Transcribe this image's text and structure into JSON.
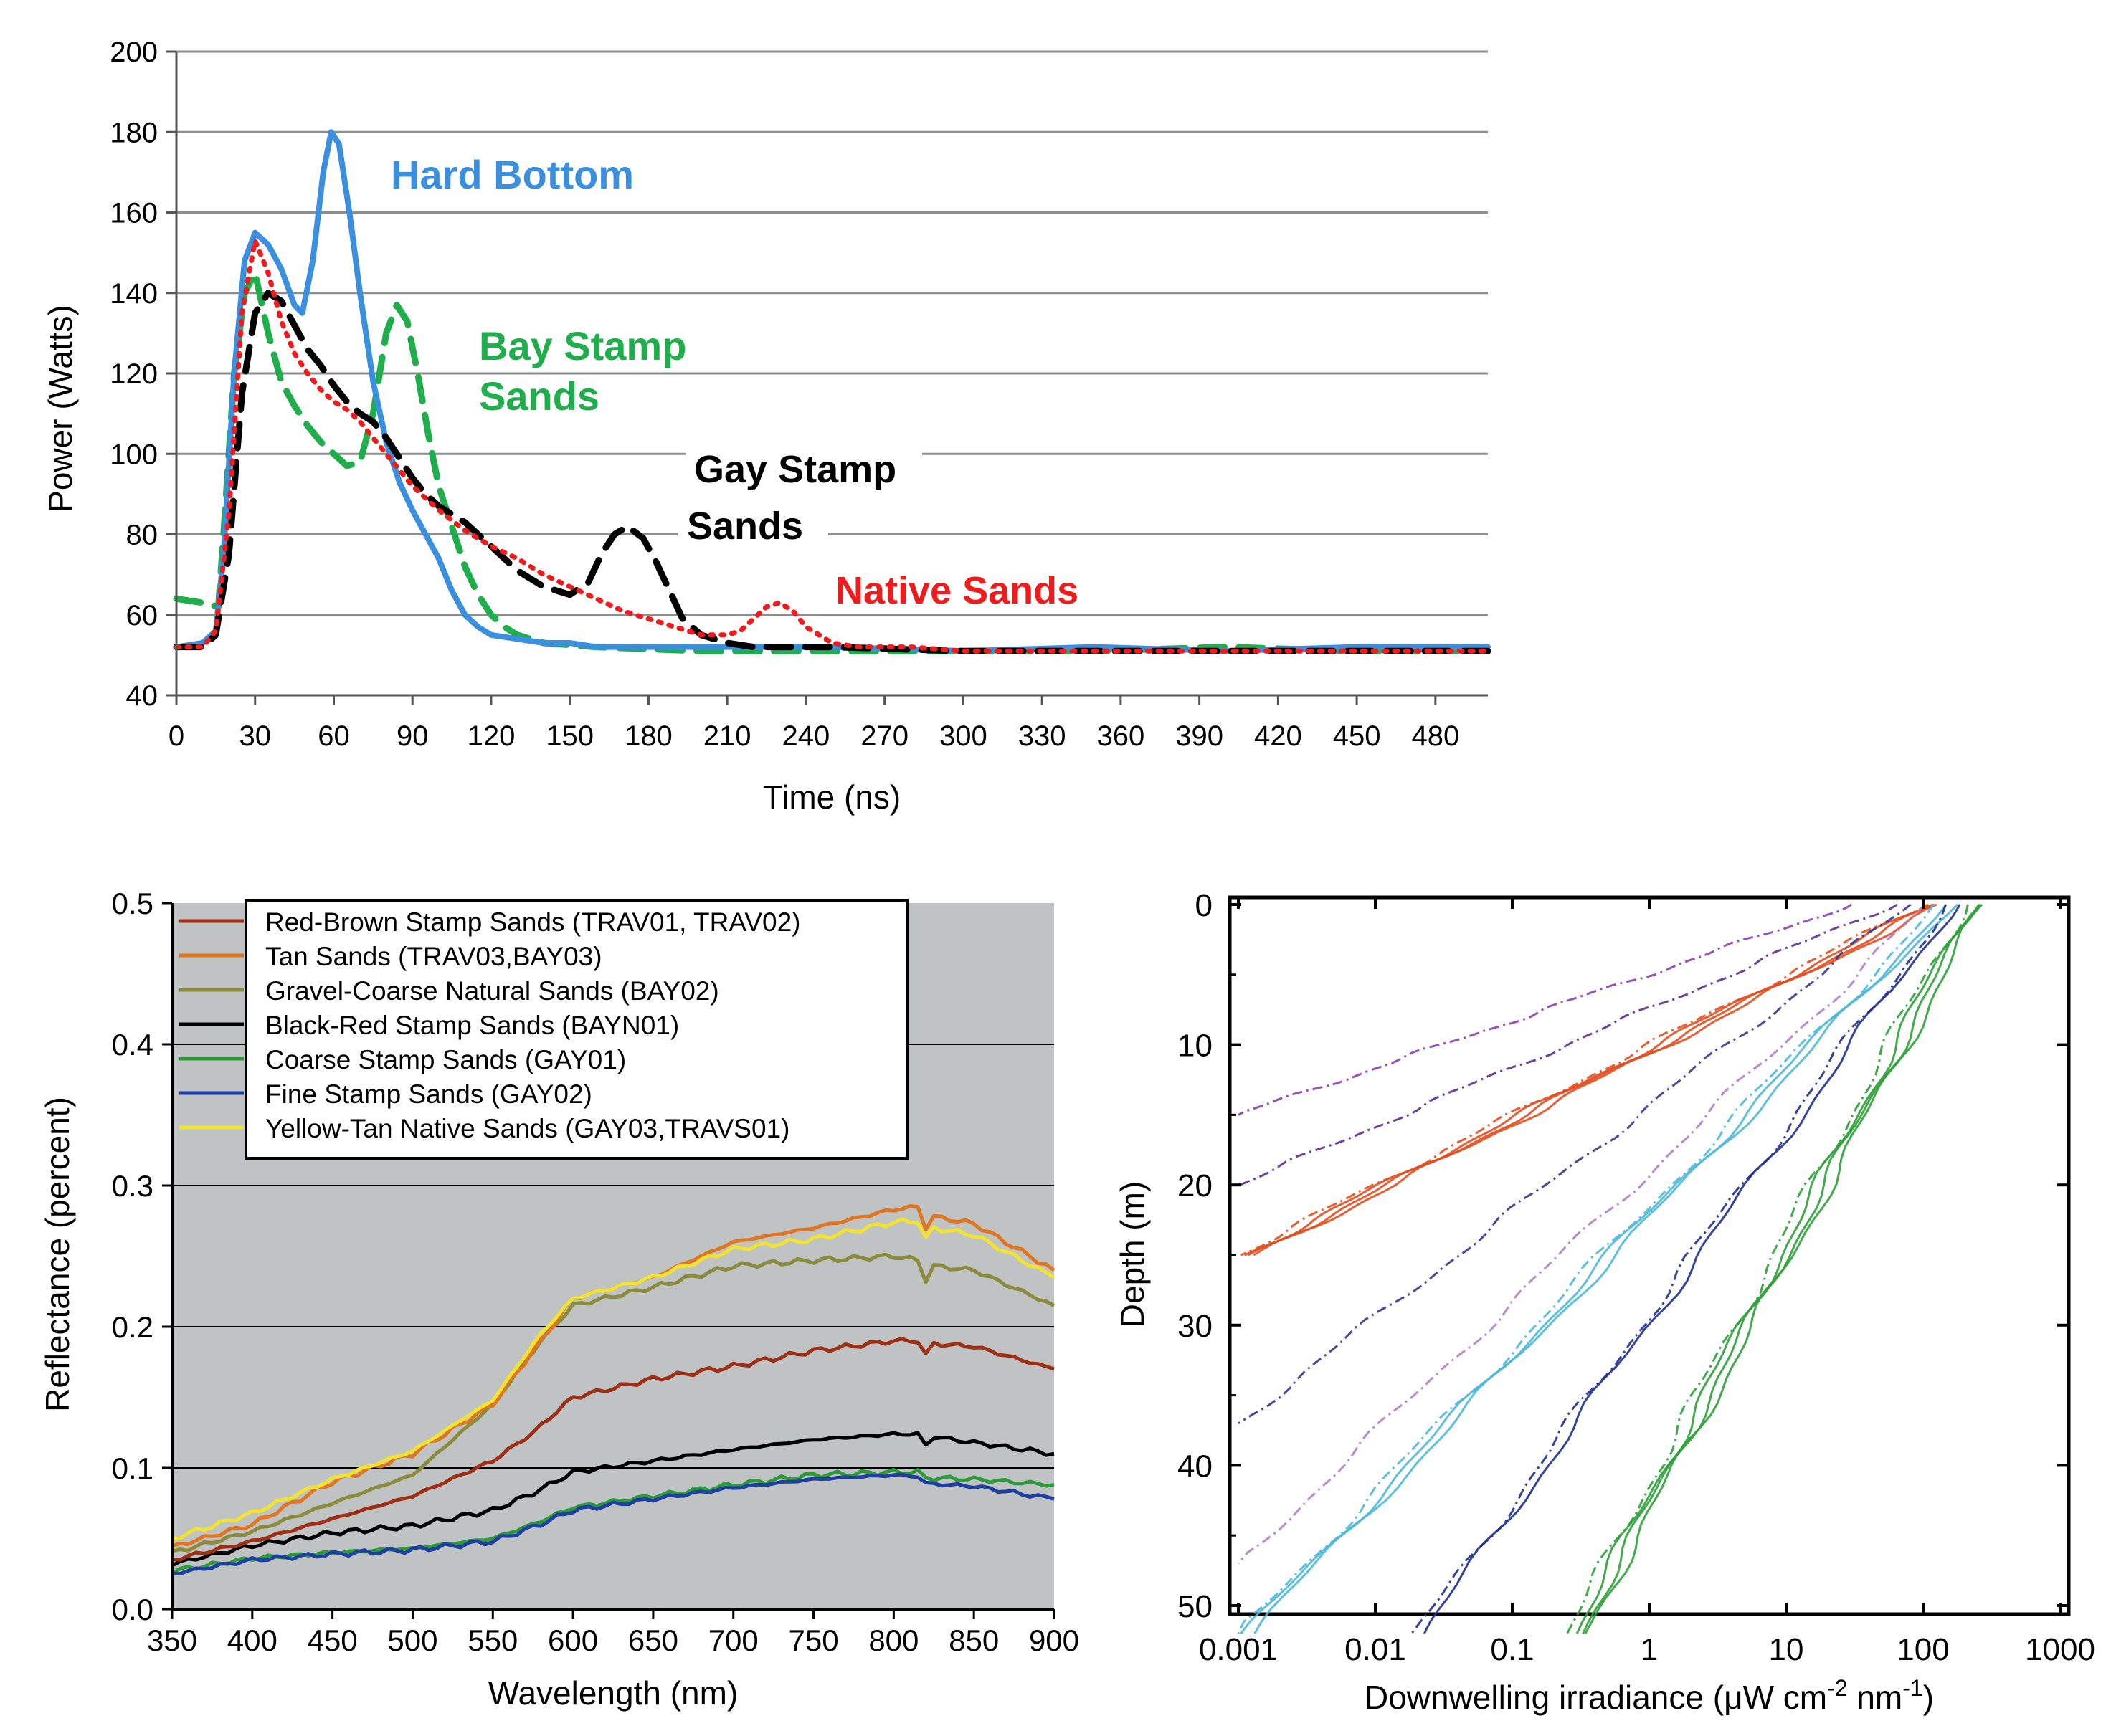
{
  "chart_data": [
    {
      "type": "line",
      "title": "",
      "xlabel": "Time (ns)",
      "ylabel": "Power (Watts)",
      "xlim": [
        0,
        500
      ],
      "ylim": [
        40,
        200
      ],
      "xticks": [
        0,
        30,
        60,
        90,
        120,
        150,
        180,
        210,
        240,
        270,
        300,
        330,
        360,
        390,
        420,
        450,
        480
      ],
      "yticks": [
        40,
        60,
        80,
        100,
        120,
        140,
        160,
        180,
        200
      ],
      "grid": "horizontal",
      "annotations": [
        {
          "lines": [
            "Hard Bottom"
          ],
          "color": "#3a8fdf"
        },
        {
          "lines": [
            "Bay Stamp",
            "Sands"
          ],
          "color": "#1fae4b"
        },
        {
          "lines": [
            "Gay Stamp",
            "Sands"
          ],
          "color": "#000000"
        },
        {
          "lines": [
            "Native Sands"
          ],
          "color": "#ee1c1c"
        }
      ],
      "series": [
        {
          "name": "Hard Bottom",
          "color": "#3a8fdf",
          "style": "solid",
          "x": [
            0,
            10,
            15,
            18,
            22,
            26,
            30,
            35,
            40,
            45,
            48,
            52,
            56,
            59,
            62,
            66,
            70,
            75,
            80,
            85,
            90,
            95,
            100,
            105,
            110,
            115,
            120,
            130,
            140,
            150,
            160,
            180,
            200,
            250,
            300,
            350,
            400,
            450,
            500
          ],
          "y": [
            52,
            53,
            56,
            75,
            120,
            148,
            155,
            152,
            146,
            137,
            135,
            148,
            170,
            180,
            177,
            160,
            140,
            118,
            103,
            93,
            86,
            80,
            74,
            66,
            60,
            57,
            55,
            54,
            53,
            53,
            52,
            52,
            52,
            52,
            51,
            52,
            51,
            52,
            52
          ]
        },
        {
          "name": "Bay Stamp Sands",
          "color": "#1fae4b",
          "style": "dashed",
          "x": [
            0,
            10,
            16,
            18,
            22,
            26,
            30,
            35,
            40,
            45,
            50,
            55,
            60,
            65,
            70,
            75,
            80,
            84,
            88,
            92,
            96,
            100,
            105,
            110,
            115,
            120,
            125,
            130,
            140,
            160,
            200,
            250,
            300,
            350,
            400,
            450,
            500
          ],
          "y": [
            64,
            63,
            62,
            80,
            120,
            140,
            145,
            130,
            118,
            112,
            107,
            103,
            100,
            97,
            98,
            110,
            130,
            137,
            133,
            120,
            105,
            92,
            82,
            72,
            65,
            60,
            57,
            55,
            53,
            52,
            51,
            51,
            51,
            51,
            52,
            51,
            51
          ]
        },
        {
          "name": "Gay Stamp Sands",
          "color": "#000000",
          "style": "dashed",
          "x": [
            0,
            10,
            15,
            20,
            25,
            30,
            35,
            40,
            45,
            50,
            55,
            60,
            65,
            70,
            75,
            80,
            85,
            90,
            95,
            100,
            110,
            120,
            130,
            140,
            150,
            157,
            162,
            167,
            172,
            178,
            183,
            188,
            193,
            200,
            210,
            220,
            250,
            300,
            350,
            400,
            450,
            500
          ],
          "y": [
            52,
            52,
            55,
            75,
            115,
            135,
            140,
            138,
            132,
            126,
            122,
            117,
            113,
            110,
            108,
            104,
            99,
            94,
            90,
            87,
            83,
            77,
            71,
            67,
            65,
            68,
            75,
            80,
            82,
            79,
            73,
            66,
            59,
            55,
            53,
            52,
            52,
            51,
            51,
            51,
            51,
            51
          ]
        },
        {
          "name": "Native Sands",
          "color": "#ee1c1c",
          "style": "dotted",
          "x": [
            0,
            10,
            15,
            20,
            25,
            30,
            35,
            40,
            45,
            50,
            55,
            60,
            65,
            70,
            80,
            90,
            100,
            110,
            120,
            130,
            140,
            150,
            160,
            170,
            180,
            190,
            200,
            210,
            215,
            220,
            225,
            230,
            235,
            240,
            245,
            250,
            260,
            280,
            300,
            350,
            400,
            450,
            500
          ],
          "y": [
            52,
            52,
            56,
            85,
            135,
            153,
            145,
            133,
            125,
            120,
            116,
            113,
            111,
            108,
            100,
            92,
            86,
            81,
            77,
            74,
            70,
            67,
            64,
            61,
            59,
            57,
            55,
            55,
            56,
            59,
            62,
            63,
            61,
            57,
            55,
            53,
            52,
            52,
            51,
            51,
            51,
            51,
            51
          ]
        }
      ]
    },
    {
      "type": "line",
      "title": "",
      "xlabel": "Wavelength (nm)",
      "ylabel": "Reflectance (percent)",
      "xlim": [
        350,
        900
      ],
      "ylim": [
        0,
        0.5
      ],
      "xticks": [
        350,
        400,
        450,
        500,
        550,
        600,
        650,
        700,
        750,
        800,
        850,
        900
      ],
      "yticks": [
        "0.0",
        "0.1",
        "0.2",
        "0.3",
        "0.4",
        "0.5"
      ],
      "background": "#bfc3c3",
      "legend": "top",
      "series": [
        {
          "name": "Red-Brown Stamp Sands (TRAV01, TRAV02)",
          "color": "#9e2e14",
          "x": [
            350,
            400,
            450,
            500,
            550,
            575,
            600,
            650,
            700,
            750,
            800,
            815,
            820,
            825,
            850,
            900
          ],
          "y": [
            0.035,
            0.048,
            0.064,
            0.08,
            0.105,
            0.125,
            0.15,
            0.163,
            0.172,
            0.183,
            0.19,
            0.19,
            0.18,
            0.188,
            0.186,
            0.17
          ]
        },
        {
          "name": "Tan Sands (TRAV03,BAY03)",
          "color": "#e0761f",
          "x": [
            350,
            400,
            450,
            500,
            550,
            580,
            600,
            650,
            700,
            750,
            800,
            815,
            820,
            825,
            850,
            900
          ],
          "y": [
            0.044,
            0.06,
            0.09,
            0.11,
            0.145,
            0.19,
            0.22,
            0.235,
            0.26,
            0.27,
            0.283,
            0.285,
            0.27,
            0.278,
            0.273,
            0.24
          ]
        },
        {
          "name": "Gravel-Coarse Natural Sands (BAY02)",
          "color": "#8a8c3c",
          "x": [
            350,
            400,
            450,
            500,
            550,
            580,
            600,
            650,
            700,
            750,
            800,
            815,
            820,
            825,
            850,
            900
          ],
          "y": [
            0.04,
            0.055,
            0.075,
            0.095,
            0.145,
            0.19,
            0.215,
            0.228,
            0.243,
            0.247,
            0.25,
            0.247,
            0.233,
            0.243,
            0.24,
            0.215
          ]
        },
        {
          "name": "Black-Red Stamp Sands (BAYN01)",
          "color": "#000000",
          "x": [
            350,
            400,
            450,
            500,
            550,
            575,
            600,
            650,
            700,
            750,
            800,
            815,
            820,
            825,
            850,
            900
          ],
          "y": [
            0.032,
            0.045,
            0.054,
            0.059,
            0.07,
            0.082,
            0.097,
            0.105,
            0.113,
            0.12,
            0.124,
            0.124,
            0.116,
            0.122,
            0.118,
            0.11
          ]
        },
        {
          "name": "Coarse Stamp Sands (GAY01)",
          "color": "#2d9a3a",
          "x": [
            350,
            400,
            450,
            500,
            550,
            575,
            600,
            650,
            700,
            750,
            800,
            815,
            820,
            850,
            900
          ],
          "y": [
            0.027,
            0.036,
            0.04,
            0.043,
            0.05,
            0.06,
            0.072,
            0.08,
            0.088,
            0.095,
            0.097,
            0.097,
            0.093,
            0.092,
            0.088
          ]
        },
        {
          "name": "Fine Stamp Sands (GAY02)",
          "color": "#1f3fa0",
          "x": [
            350,
            400,
            450,
            500,
            550,
            575,
            600,
            650,
            700,
            750,
            800,
            815,
            820,
            850,
            900
          ],
          "y": [
            0.025,
            0.035,
            0.039,
            0.042,
            0.048,
            0.058,
            0.07,
            0.078,
            0.086,
            0.092,
            0.095,
            0.094,
            0.089,
            0.087,
            0.078
          ]
        },
        {
          "name": "Yellow-Tan Native Sands (GAY03,TRAVS01)",
          "color": "#f2e232",
          "x": [
            350,
            400,
            450,
            500,
            550,
            580,
            600,
            650,
            700,
            750,
            800,
            815,
            820,
            825,
            850,
            900
          ],
          "y": [
            0.05,
            0.068,
            0.092,
            0.112,
            0.148,
            0.195,
            0.22,
            0.235,
            0.255,
            0.262,
            0.274,
            0.275,
            0.262,
            0.27,
            0.265,
            0.235
          ]
        }
      ]
    },
    {
      "type": "line",
      "title": "",
      "xlabel": "Downwelling irradiance (μW cm-2 nm-1)",
      "xlabel_parts": {
        "main": "Downwelling irradiance (μW cm",
        "exp1": "-2",
        "mid": " nm",
        "exp2": "-1",
        "end": ")"
      },
      "ylabel": "Depth (m)",
      "xscale": "log",
      "xlim": [
        0.001,
        1000
      ],
      "ylim": [
        0,
        52
      ],
      "yinverted": true,
      "xticks": [
        "0.001",
        "0.01",
        "0.1",
        "1",
        "10",
        "100",
        "1000"
      ],
      "yticks": [
        "0",
        "10",
        "20",
        "30",
        "40",
        "50"
      ],
      "series": [
        {
          "name": "violet-1",
          "color": "#8a3fb0",
          "x0": 30,
          "x1": 0.001,
          "depth_end": 15,
          "count": 1
        },
        {
          "name": "violet-2",
          "color": "#5a2f90",
          "x0": 60,
          "x1": 0.001,
          "depth_end": 20,
          "count": 1
        },
        {
          "name": "orange",
          "color": "#e24f20",
          "x0": 100,
          "x1": 0.001,
          "depth_end": 25,
          "count": 4
        },
        {
          "name": "indigo",
          "color": "#3b3490",
          "x0": 80,
          "x1": 0.001,
          "depth_end": 37,
          "count": 1
        },
        {
          "name": "lavender",
          "color": "#b080c8",
          "x0": 110,
          "x1": 0.001,
          "depth_end": 47,
          "count": 1
        },
        {
          "name": "cyan",
          "color": "#4fb8d8",
          "x0": 130,
          "x1": 0.001,
          "depth_end": 52,
          "count": 3
        },
        {
          "name": "navy",
          "color": "#20308f",
          "x0": 150,
          "x1": 0.02,
          "depth_end": 52,
          "count": 2
        },
        {
          "name": "green",
          "color": "#2fa03a",
          "x0": 200,
          "x1": 0.25,
          "depth_end": 52,
          "count": 4
        }
      ]
    }
  ]
}
